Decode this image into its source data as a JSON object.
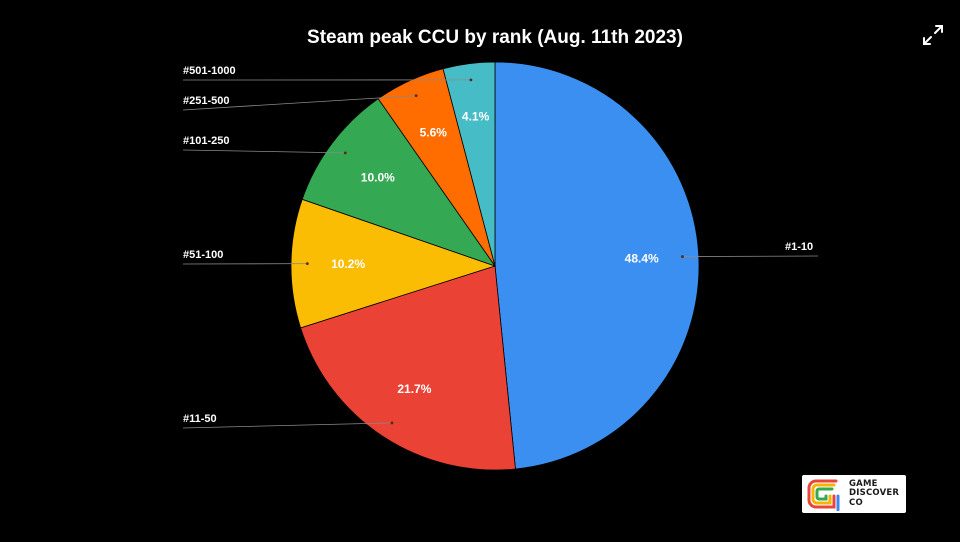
{
  "expand_icon": "expand-arrows-icon",
  "chart_data": {
    "type": "pie",
    "title": "Steam peak CCU by rank (Aug. 11th 2023)",
    "start_angle_deg": 0,
    "direction": "clockwise",
    "slices": [
      {
        "label": "#1-10",
        "value": 48.4,
        "display": "48.4%",
        "color": "#3b8ff0"
      },
      {
        "label": "#11-50",
        "value": 21.7,
        "display": "21.7%",
        "color": "#ea4335"
      },
      {
        "label": "#51-100",
        "value": 10.2,
        "display": "10.2%",
        "color": "#fbbc04"
      },
      {
        "label": "#101-250",
        "value": 10.0,
        "display": "10.0%",
        "color": "#34a853"
      },
      {
        "label": "#251-500",
        "value": 5.6,
        "display": "5.6%",
        "color": "#ff6d01"
      },
      {
        "label": "#501-1000",
        "value": 4.1,
        "display": "4.1%",
        "color": "#46bdc6"
      }
    ]
  },
  "logo": {
    "line1": "GAME",
    "line2": "DISCOVER",
    "line3": "CO",
    "colors": [
      "#e8453c",
      "#f4b400",
      "#34a853",
      "#4285f4"
    ]
  }
}
